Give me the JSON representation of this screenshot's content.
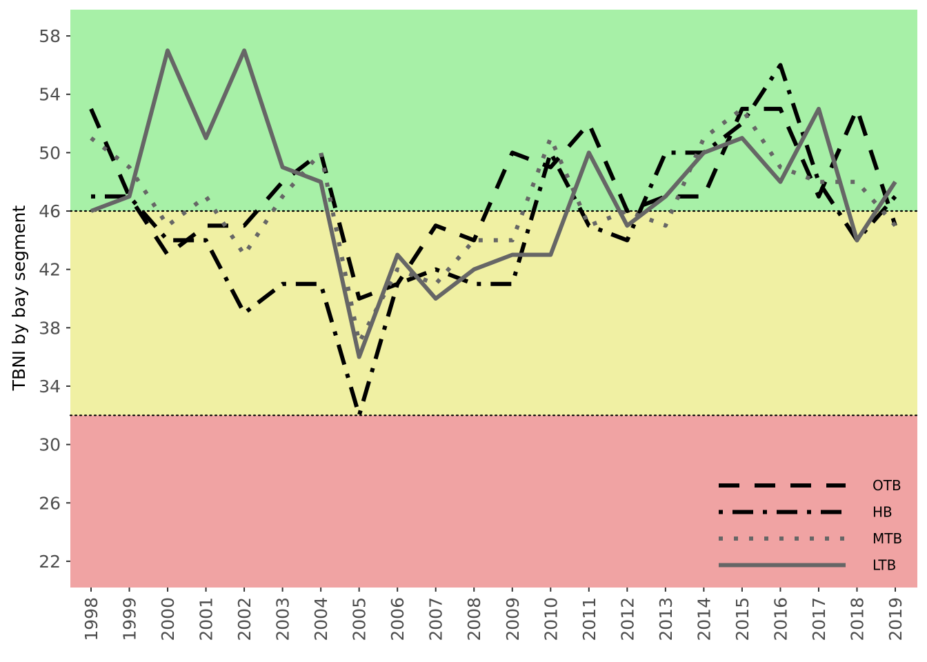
{
  "chart_data": {
    "type": "line",
    "title": "",
    "xlabel": "",
    "ylabel": "TBNI by bay segment",
    "x": [
      1998,
      1999,
      2000,
      2001,
      2002,
      2003,
      2004,
      2005,
      2006,
      2007,
      2008,
      2009,
      2010,
      2011,
      2012,
      2013,
      2014,
      2015,
      2016,
      2017,
      2018,
      2019
    ],
    "x_tick_labels": [
      "1998",
      "1999",
      "2000",
      "2001",
      "2002",
      "2003",
      "2004",
      "2005",
      "2006",
      "2007",
      "2008",
      "2009",
      "2010",
      "2011",
      "2012",
      "2013",
      "2014",
      "2015",
      "2016",
      "2017",
      "2018",
      "2019"
    ],
    "y_ticks": [
      22,
      26,
      30,
      34,
      38,
      42,
      46,
      50,
      54,
      58
    ],
    "y_tick_labels": [
      "22",
      "26",
      "30",
      "34",
      "38",
      "42",
      "46",
      "50",
      "54",
      "58"
    ],
    "ylim": [
      20.2,
      59.8
    ],
    "bands": [
      {
        "from": 20.2,
        "to": 32,
        "color": "#f0a3a3"
      },
      {
        "from": 32,
        "to": 46,
        "color": "#f0f0a3"
      },
      {
        "from": 46,
        "to": 59.8,
        "color": "#a7f0a7"
      }
    ],
    "thresholds": [
      32,
      46
    ],
    "grid": false,
    "legend_position": "bottom-right",
    "series": [
      {
        "name": "OTB",
        "line": "dashed",
        "color": "#000000",
        "values": [
          53,
          47,
          43,
          45,
          45,
          48,
          50,
          40,
          41,
          45,
          44,
          50,
          49,
          52,
          46,
          47,
          47,
          53,
          53,
          47,
          53,
          45
        ]
      },
      {
        "name": "HB",
        "line": "dotdash",
        "color": "#000000",
        "values": [
          47,
          47,
          44,
          44,
          39,
          41,
          41,
          32,
          41,
          42,
          41,
          41,
          50,
          45,
          44,
          50,
          50,
          52,
          56,
          48,
          44,
          47
        ]
      },
      {
        "name": "MTB",
        "line": "dotted",
        "color": "#666666",
        "values": [
          51,
          49,
          45,
          47,
          43,
          47,
          50,
          37,
          42,
          41,
          44,
          44,
          51,
          45,
          46,
          45,
          51,
          53,
          49,
          48,
          48,
          45
        ]
      },
      {
        "name": "LTB",
        "line": "solid",
        "color": "#666666",
        "values": [
          46,
          47,
          57,
          51,
          57,
          49,
          48,
          36,
          43,
          40,
          42,
          43,
          43,
          50,
          45,
          47,
          50,
          51,
          48,
          53,
          44,
          48
        ]
      }
    ]
  }
}
